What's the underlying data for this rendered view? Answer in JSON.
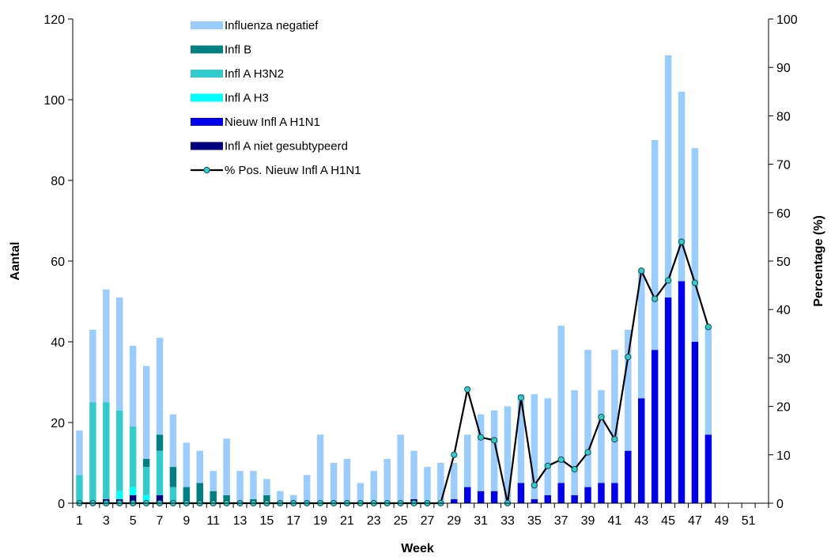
{
  "chart_data": {
    "type": "bar",
    "stacked": true,
    "xlabel": "Week",
    "ylabel_left": "Aantal",
    "ylabel_right": "Percentage (%)",
    "ylim_left": [
      0,
      120
    ],
    "ylim_right": [
      0,
      100
    ],
    "y_ticks_left": [
      0,
      20,
      40,
      60,
      80,
      100,
      120
    ],
    "y_ticks_right": [
      0,
      10,
      20,
      30,
      40,
      50,
      60,
      70,
      80,
      90,
      100
    ],
    "x_tick_labels": [
      "1",
      "3",
      "5",
      "7",
      "9",
      "11",
      "13",
      "15",
      "17",
      "19",
      "21",
      "23",
      "25",
      "27",
      "29",
      "31",
      "33",
      "35",
      "37",
      "39",
      "41",
      "43",
      "45",
      "47",
      "49",
      "51"
    ],
    "legend_position": "top-center",
    "categories": [
      1,
      2,
      3,
      4,
      5,
      6,
      7,
      8,
      9,
      10,
      11,
      12,
      13,
      14,
      15,
      16,
      17,
      18,
      19,
      20,
      21,
      22,
      23,
      24,
      25,
      26,
      27,
      28,
      29,
      30,
      31,
      32,
      33,
      34,
      35,
      36,
      37,
      38,
      39,
      40,
      41,
      42,
      43,
      44,
      45,
      46,
      47,
      48,
      49,
      50,
      51,
      52
    ],
    "series": [
      {
        "name": "Infl A niet gesubtypeerd",
        "color": "#000080",
        "axis": "left",
        "values": [
          0,
          0,
          1,
          1,
          2,
          0,
          2,
          0,
          0,
          0,
          0,
          0,
          0,
          0,
          0,
          0,
          0,
          0,
          0,
          0,
          0,
          0,
          0,
          0,
          0,
          1,
          0,
          0,
          0,
          0,
          0,
          0,
          0,
          0,
          0,
          0,
          0,
          0,
          0,
          0,
          0,
          0,
          0,
          0,
          0,
          0,
          0,
          0,
          0,
          0,
          0,
          0
        ]
      },
      {
        "name": "Nieuw Infl A H1N1",
        "color": "#0000ee",
        "axis": "left",
        "values": [
          0,
          0,
          0,
          0,
          0,
          0,
          0,
          0,
          0,
          0,
          0,
          0,
          0,
          0,
          0,
          0,
          0,
          0,
          0,
          0,
          0,
          0,
          0,
          0,
          0,
          0,
          0,
          0,
          1,
          4,
          3,
          3,
          0,
          5,
          1,
          2,
          5,
          2,
          4,
          5,
          5,
          13,
          26,
          38,
          51,
          55,
          40,
          17,
          0,
          0,
          0,
          0
        ]
      },
      {
        "name": "Infl A H3",
        "color": "#00ffff",
        "axis": "left",
        "values": [
          0,
          0,
          0,
          2,
          2,
          2,
          0,
          0,
          0,
          0,
          0,
          0,
          0,
          0,
          0,
          0,
          0,
          0,
          0,
          0,
          0,
          0,
          0,
          0,
          0,
          0,
          0,
          0,
          0,
          0,
          0,
          0,
          0,
          0,
          0,
          0,
          0,
          0,
          0,
          0,
          0,
          0,
          0,
          0,
          0,
          0,
          0,
          0,
          0,
          0,
          0,
          0
        ]
      },
      {
        "name": "Infl A H3N2",
        "color": "#33cccc",
        "axis": "left",
        "values": [
          7,
          25,
          24,
          20,
          15,
          7,
          11,
          4,
          0,
          0,
          0,
          0,
          0,
          0,
          0,
          0,
          0,
          0,
          0,
          0,
          0,
          0,
          0,
          0,
          0,
          0,
          0,
          0,
          0,
          0,
          0,
          0,
          0,
          0,
          0,
          0,
          0,
          0,
          0,
          0,
          0,
          0,
          0,
          0,
          0,
          0,
          0,
          0,
          0,
          0,
          0,
          0
        ]
      },
      {
        "name": "Infl B",
        "color": "#008080",
        "axis": "left",
        "values": [
          0,
          0,
          0,
          0,
          0,
          2,
          4,
          5,
          4,
          5,
          3,
          2,
          0,
          1,
          2,
          0,
          0,
          0,
          0,
          0,
          0,
          0,
          0,
          0,
          0,
          0,
          0,
          0,
          0,
          0,
          0,
          0,
          0,
          0,
          0,
          0,
          0,
          0,
          0,
          0,
          0,
          0,
          0,
          0,
          0,
          0,
          0,
          0,
          0,
          0,
          0,
          0
        ]
      },
      {
        "name": "Influenza negatief",
        "color": "#99ccff",
        "axis": "left",
        "values": [
          11,
          18,
          28,
          28,
          20,
          23,
          24,
          13,
          11,
          8,
          5,
          14,
          8,
          7,
          4,
          3,
          2,
          7,
          17,
          10,
          11,
          5,
          8,
          11,
          17,
          12,
          9,
          10,
          9,
          13,
          19,
          20,
          24,
          22,
          26,
          24,
          39,
          26,
          34,
          23,
          33,
          30,
          32,
          52,
          60,
          47,
          48,
          27,
          0,
          0,
          0,
          0
        ]
      },
      {
        "name": "% Pos. Nieuw Infl A H1N1",
        "type": "line",
        "color": "#000000",
        "marker_color": "#33cccc",
        "axis": "right",
        "x": [
          1,
          2,
          3,
          4,
          5,
          6,
          7,
          8,
          9,
          10,
          11,
          12,
          13,
          14,
          15,
          16,
          17,
          18,
          19,
          20,
          21,
          22,
          23,
          24,
          25,
          26,
          27,
          28,
          29,
          30,
          31,
          32,
          33,
          34,
          35,
          36,
          37,
          38,
          39,
          40,
          41,
          42,
          43,
          44,
          45,
          46,
          47,
          48
        ],
        "values": [
          0,
          0,
          0,
          0,
          0,
          0,
          0,
          0,
          0,
          0,
          0,
          0,
          0,
          0,
          0,
          0,
          0,
          0,
          0,
          0,
          0,
          0,
          0,
          0,
          0,
          0,
          0,
          0,
          10,
          23.5,
          13.6,
          13,
          0,
          21.8,
          3.7,
          7.7,
          9,
          7,
          10.5,
          17.8,
          13.2,
          30.2,
          48,
          42.2,
          46,
          54,
          45.5,
          36.4
        ]
      }
    ],
    "legend_order": [
      "Influenza negatief",
      "Infl B",
      "Infl A H3N2",
      "Infl A H3",
      "Nieuw Infl A H1N1",
      "Infl A niet gesubtypeerd",
      "% Pos. Nieuw Infl A H1N1"
    ]
  }
}
